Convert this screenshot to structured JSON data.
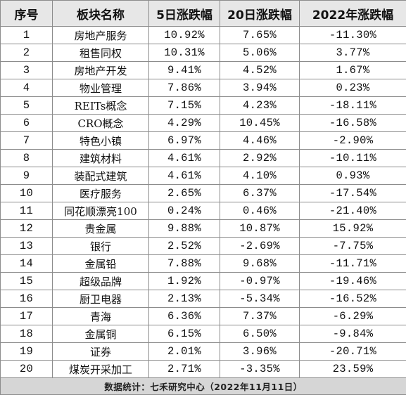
{
  "table": {
    "headers": [
      "序号",
      "板块名称",
      "5日涨跌幅",
      "20日涨跌幅",
      "2022年涨跌幅"
    ],
    "rows": [
      [
        "1",
        "房地产服务",
        "10.92%",
        "7.65%",
        "-11.30%"
      ],
      [
        "2",
        "租售同权",
        "10.31%",
        "5.06%",
        "3.77%"
      ],
      [
        "3",
        "房地产开发",
        "9.41%",
        "4.52%",
        "1.67%"
      ],
      [
        "4",
        "物业管理",
        "7.86%",
        "3.94%",
        "0.23%"
      ],
      [
        "5",
        "REITs概念",
        "7.15%",
        "4.23%",
        "-18.11%"
      ],
      [
        "6",
        "CRO概念",
        "4.29%",
        "10.45%",
        "-16.58%"
      ],
      [
        "7",
        "特色小镇",
        "6.97%",
        "4.46%",
        "-2.90%"
      ],
      [
        "8",
        "建筑材料",
        "4.61%",
        "2.92%",
        "-10.11%"
      ],
      [
        "9",
        "装配式建筑",
        "4.61%",
        "4.10%",
        "0.93%"
      ],
      [
        "10",
        "医疗服务",
        "2.65%",
        "6.37%",
        "-17.54%"
      ],
      [
        "11",
        "同花顺漂亮100",
        "0.24%",
        "0.46%",
        "-21.40%"
      ],
      [
        "12",
        "贵金属",
        "9.88%",
        "10.87%",
        "15.92%"
      ],
      [
        "13",
        "银行",
        "2.52%",
        "-2.69%",
        "-7.75%"
      ],
      [
        "14",
        "金属铅",
        "7.88%",
        "9.68%",
        "-11.71%"
      ],
      [
        "15",
        "超级品牌",
        "1.92%",
        "-0.97%",
        "-19.46%"
      ],
      [
        "16",
        "厨卫电器",
        "2.13%",
        "-5.34%",
        "-16.52%"
      ],
      [
        "17",
        "青海",
        "6.36%",
        "7.37%",
        "-6.29%"
      ],
      [
        "18",
        "金属铜",
        "6.15%",
        "6.50%",
        "-9.84%"
      ],
      [
        "19",
        "证券",
        "2.01%",
        "3.96%",
        "-20.71%"
      ],
      [
        "20",
        "煤炭开采加工",
        "2.71%",
        "-3.35%",
        "23.59%"
      ]
    ],
    "footer": "数据统计：七禾研究中心（2022年11月11日）"
  },
  "colors": {
    "header_bg": "#e7e7e7",
    "footer_bg": "#d6d6d6",
    "grid": "#8c8c8c",
    "text": "#111111"
  }
}
